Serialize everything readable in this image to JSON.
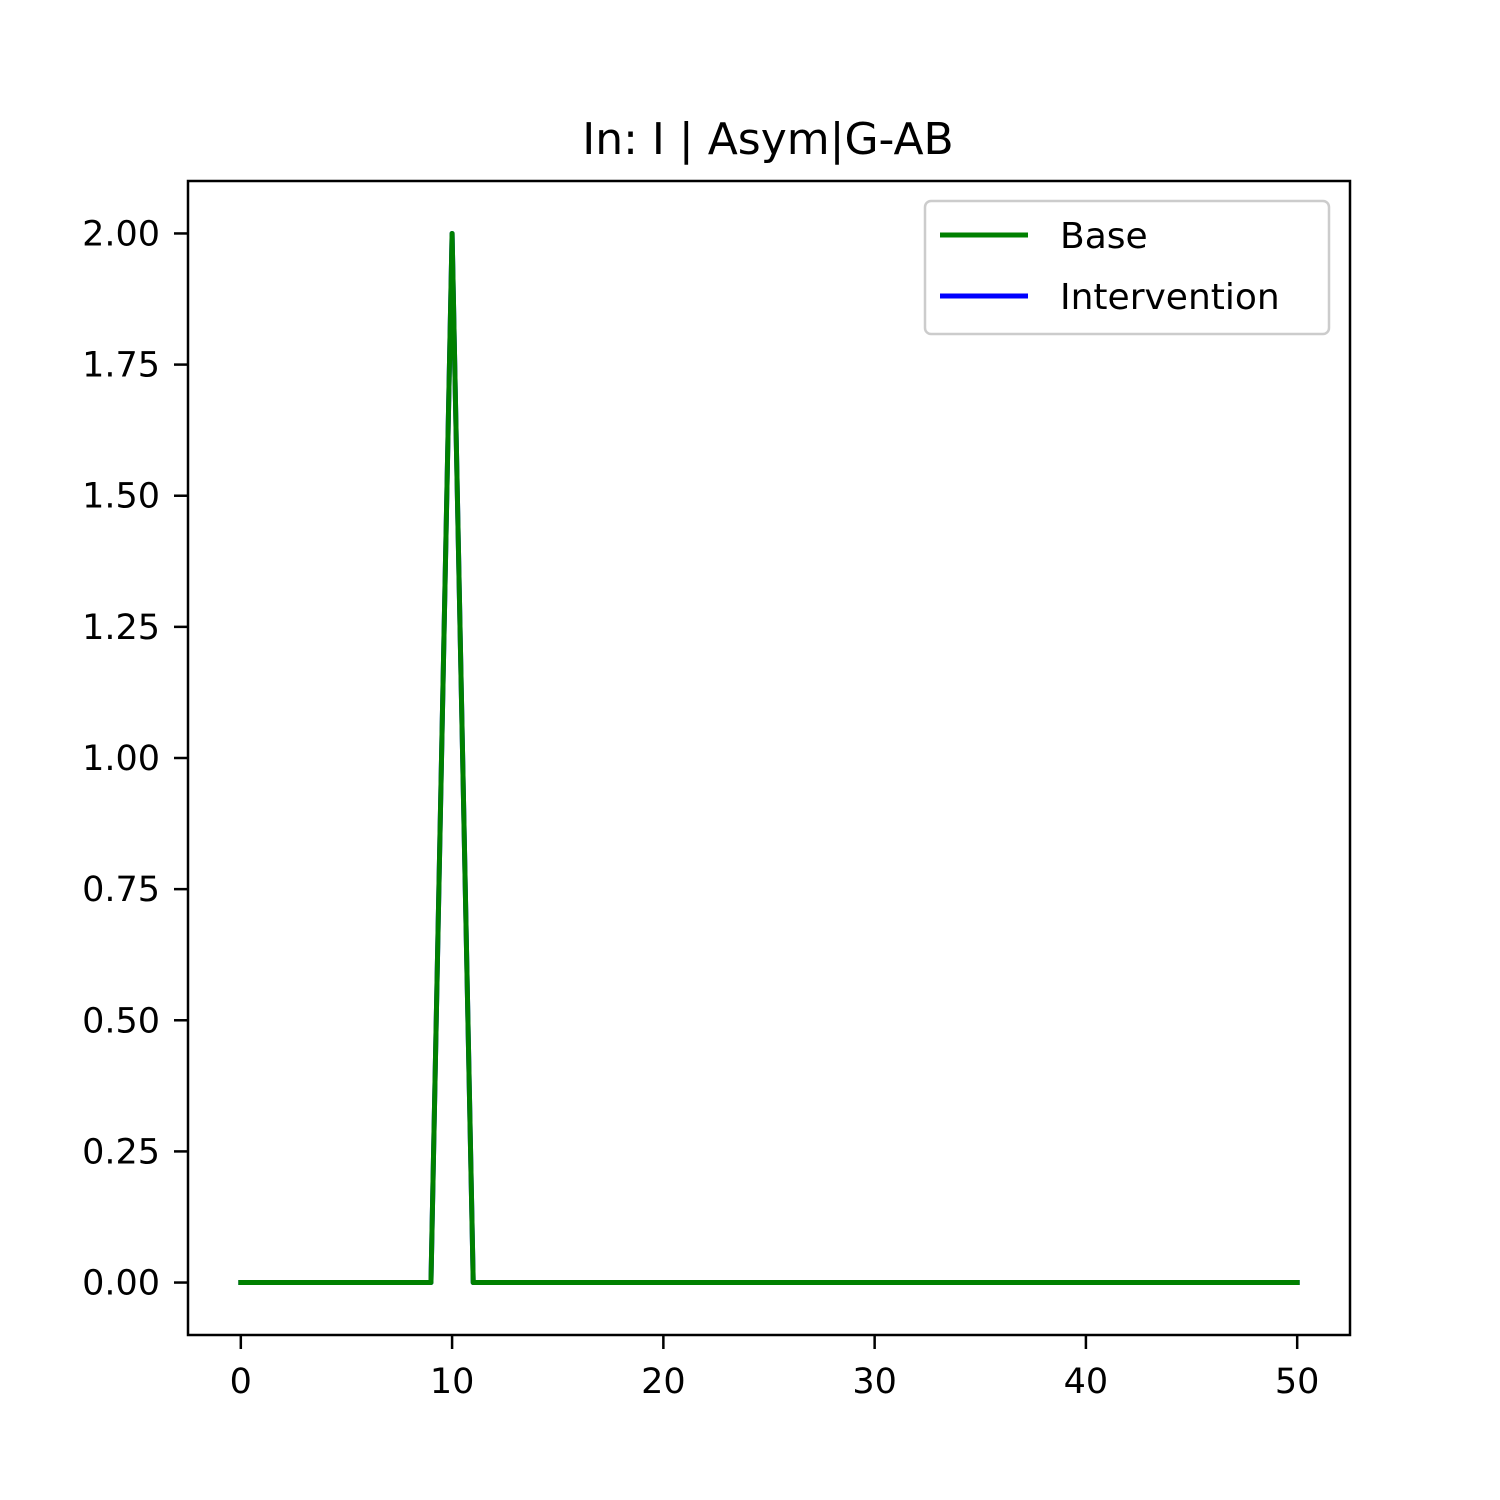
{
  "chart_data": {
    "type": "line",
    "title": "In: I | Asym|G-AB",
    "xlabel": "",
    "ylabel": "",
    "xlim": [
      -2.5,
      52.5
    ],
    "ylim": [
      -0.1,
      2.1
    ],
    "xticks": [
      0,
      10,
      20,
      30,
      40,
      50
    ],
    "xtick_labels": [
      "0",
      "10",
      "20",
      "30",
      "40",
      "50"
    ],
    "yticks": [
      0,
      0.25,
      0.5,
      0.75,
      1.0,
      1.25,
      1.5,
      1.75,
      2.0
    ],
    "ytick_labels": [
      "0.00",
      "0.25",
      "0.50",
      "0.75",
      "1.00",
      "1.25",
      "1.50",
      "1.75",
      "2.00"
    ],
    "grid": false,
    "legend_position": "top-right",
    "series": [
      {
        "name": "Intervention",
        "color": "#0000ff",
        "x": [
          0,
          9,
          10,
          11,
          50
        ],
        "y": [
          0,
          0,
          2.0,
          0,
          0
        ]
      },
      {
        "name": "Base",
        "color": "#008000",
        "x": [
          0,
          9,
          10,
          11,
          50
        ],
        "y": [
          0,
          0,
          2.0,
          0,
          0
        ]
      }
    ],
    "legend_order": [
      "Base",
      "Intervention"
    ]
  }
}
